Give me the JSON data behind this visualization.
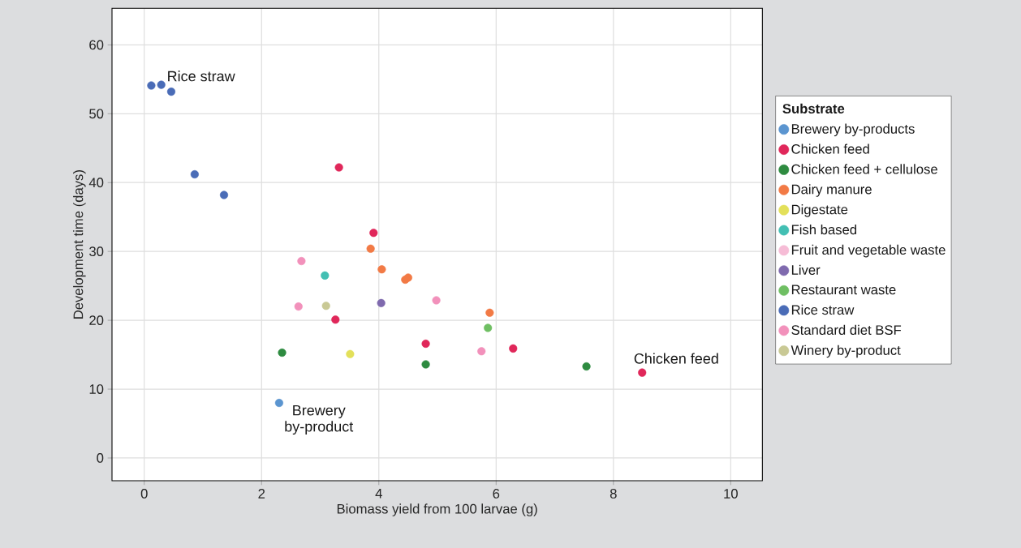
{
  "chart_data": {
    "type": "scatter",
    "xlabel": "Biomass yield from 100 larvae (g)",
    "ylabel": "Development time (days)",
    "legend_title": "Substrate",
    "xlim": [
      -0.55,
      10.54
    ],
    "ylim": [
      -3.3,
      65.3
    ],
    "xticks": [
      0,
      2,
      4,
      6,
      8,
      10
    ],
    "yticks": [
      0,
      10,
      20,
      30,
      40,
      50,
      60
    ],
    "grid": true,
    "legend": "right",
    "marker": "circle",
    "series": [
      {
        "name": "Brewery by-products",
        "color": "#5b95d0",
        "x": [
          2.3
        ],
        "values": [
          8.0
        ]
      },
      {
        "name": "Chicken feed",
        "color": "#e0275a",
        "x": [
          3.32,
          3.91,
          3.26,
          4.8,
          6.29,
          8.49
        ],
        "values": [
          42.2,
          32.7,
          20.1,
          16.6,
          15.9,
          12.4
        ]
      },
      {
        "name": "Chicken feed + cellulose",
        "color": "#2e8b40",
        "x": [
          2.35,
          4.8,
          7.54
        ],
        "values": [
          15.3,
          13.6,
          13.3
        ]
      },
      {
        "name": "Dairy manure",
        "color": "#f27a45",
        "x": [
          3.86,
          4.05,
          4.45,
          4.5,
          5.89
        ],
        "values": [
          30.4,
          27.4,
          25.9,
          26.2,
          21.1
        ]
      },
      {
        "name": "Digestate",
        "color": "#e3e05a",
        "x": [
          3.51
        ],
        "values": [
          15.1
        ]
      },
      {
        "name": "Fish based",
        "color": "#43bfb3",
        "x": [
          3.08
        ],
        "values": [
          26.5
        ]
      },
      {
        "name": "Fruit and vegetable waste",
        "color": "#f6bcd6"
      },
      {
        "name": "Liver",
        "color": "#7f6aae",
        "x": [
          4.04
        ],
        "values": [
          22.5
        ]
      },
      {
        "name": "Restaurant waste",
        "color": "#6fbf63",
        "x": [
          5.86
        ],
        "values": [
          18.9
        ]
      },
      {
        "name": "Rice straw",
        "color": "#4a6cb7",
        "x": [
          0.12,
          0.29,
          0.46,
          0.86,
          1.36
        ],
        "values": [
          54.1,
          54.2,
          53.2,
          41.2,
          38.2
        ]
      },
      {
        "name": "Standard diet BSF",
        "color": "#f291bb",
        "x": [
          2.68,
          2.63,
          4.98,
          5.75
        ],
        "values": [
          28.6,
          22.0,
          22.9,
          15.5
        ]
      },
      {
        "name": "Winery by-product",
        "color": "#c9c995",
        "x": [
          3.1
        ],
        "values": [
          22.1
        ]
      }
    ],
    "annotations": [
      {
        "text": "Rice straw",
        "x": 0.29,
        "y": 54.2
      },
      {
        "text": "Chicken feed",
        "x": 8.49,
        "y": 12.4
      },
      {
        "text": "Brewery by-product",
        "x": 2.3,
        "y": 8.0
      }
    ]
  }
}
